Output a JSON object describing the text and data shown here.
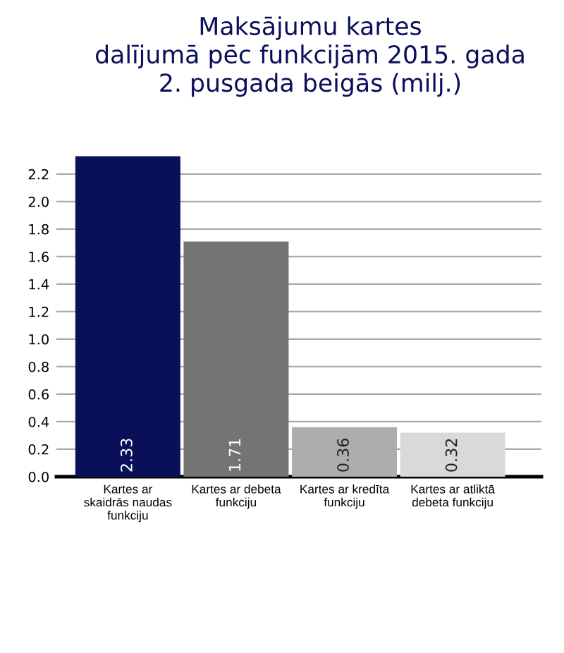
{
  "chart_data": {
    "type": "bar",
    "title": "Maksājumu kartes\ndalījumā pēc funkcijām 2015. gada\n2. pusgada beigās (milj.)",
    "categories": [
      "Kartes ar\nskaidrās naudas\nfunkciju",
      "Kartes ar debeta\nfunkciju",
      "Kartes ar kredīta\nfunkciju",
      "Kartes ar atliktā\ndebeta funkciju"
    ],
    "values": [
      2.33,
      1.71,
      0.36,
      0.32
    ],
    "colors": [
      "#0a0f5a",
      "#747474",
      "#adadad",
      "#d9d9d9"
    ],
    "data_labels": true,
    "ylim": [
      0,
      2.35
    ],
    "yticks": [
      {
        "value": 0,
        "label": "0.0"
      },
      {
        "value": 0.2,
        "label": "0.2"
      },
      {
        "value": 0.4,
        "label": "0.4"
      },
      {
        "value": 0.6,
        "label": "0.6"
      },
      {
        "value": 0.8,
        "label": "0.8"
      },
      {
        "value": 1.0,
        "label": "1.0"
      },
      {
        "value": 1.2,
        "label": "1.2"
      },
      {
        "value": 1.4,
        "label": "1.4"
      },
      {
        "value": 1.6,
        "label": "1.6"
      },
      {
        "value": 1.8,
        "label": "1.8"
      },
      {
        "value": 2.0,
        "label": "2.0"
      },
      {
        "value": 2.2,
        "label": "2.2"
      }
    ],
    "grid": "y"
  }
}
